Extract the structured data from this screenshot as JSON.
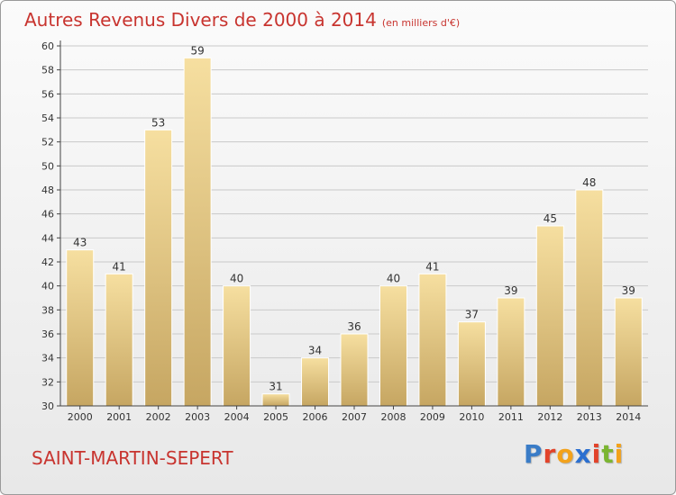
{
  "header": {
    "title": "Autres Revenus Divers de 2000 à 2014",
    "subtitle": "(en milliers d'€)"
  },
  "footer": {
    "commune": "SAINT-MARTIN-SEPERT",
    "logo_text": "Proxiti",
    "logo_colors": [
      "#3a7cc7",
      "#e2432a",
      "#f3a21b",
      "#2b6fd0",
      "#e2432a",
      "#7bb531",
      "#f3a21b"
    ]
  },
  "colors": {
    "title": "#c8342f",
    "bar_top": "#f6dfa0",
    "bar_bottom": "#c6a662",
    "axis": "#444444",
    "grid": "#c9c9c9"
  },
  "chart_data": {
    "type": "bar",
    "categories": [
      "2000",
      "2001",
      "2002",
      "2003",
      "2004",
      "2005",
      "2006",
      "2007",
      "2008",
      "2009",
      "2010",
      "2011",
      "2012",
      "2013",
      "2014"
    ],
    "values": [
      43,
      41,
      53,
      59,
      40,
      31,
      34,
      36,
      40,
      41,
      37,
      39,
      45,
      48,
      39
    ],
    "ylim": [
      30,
      60
    ],
    "yticks": [
      30,
      32,
      34,
      36,
      38,
      40,
      42,
      44,
      46,
      48,
      50,
      52,
      54,
      56,
      58,
      60
    ],
    "grid": true,
    "data_labels": true,
    "xlabel": "",
    "ylabel": ""
  }
}
